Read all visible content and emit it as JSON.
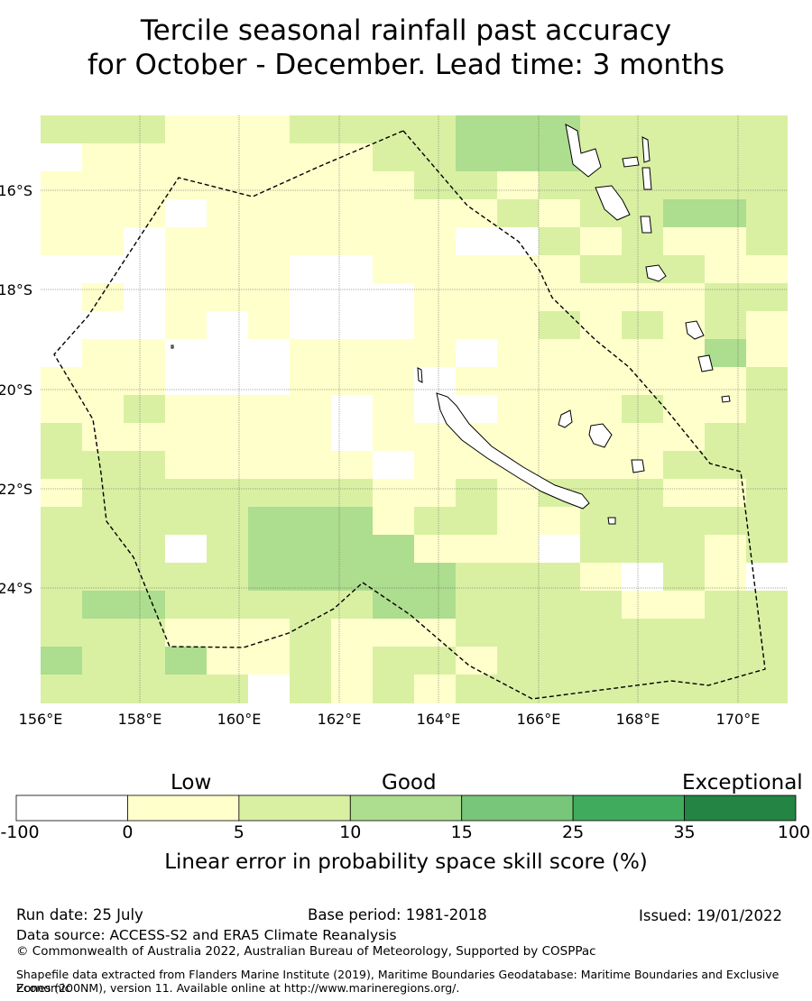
{
  "title_line1": "Tercile seasonal rainfall past accuracy",
  "title_line2": "for October - December. Lead time: 3 months",
  "map": {
    "lon_ticks": [
      "156°E",
      "158°E",
      "160°E",
      "162°E",
      "164°E",
      "166°E",
      "168°E",
      "170°E"
    ],
    "lat_ticks": [
      "16°S",
      "18°S",
      "20°S",
      "22°S",
      "24°S"
    ],
    "grid_lon_range": [
      156,
      171
    ],
    "grid_lat_range": [
      -14.3,
      -26.1
    ]
  },
  "colorbar": {
    "categories": [
      "Low",
      "Good",
      "Exceptional"
    ],
    "tick_labels": [
      "-100",
      "0",
      "5",
      "10",
      "15",
      "25",
      "35",
      "100"
    ],
    "colors": [
      "#ffffff",
      "#ffffcc",
      "#d9f0a3",
      "#addd8e",
      "#78c679",
      "#41ab5d",
      "#238443"
    ],
    "label": "Linear error in probability space skill score (%)"
  },
  "footer": {
    "run_date": "Run date: 25 July",
    "base_period": "Base period: 1981-2018",
    "issued": "Issued: 19/01/2022",
    "data_source": "Data source: ACCESS-S2 and ERA5 Climate Reanalysis",
    "copyright": "© Commonwealth of Australia 2022, Australian Bureau of Meteorology, Supported by COSPPac",
    "shapefile_line1": "Shapefile data extracted from Flanders Marine Institute (2019), Maritime Boundaries Geodatabase: Maritime Boundaries and Exclusive Economic",
    "shapefile_line2": "Zones (200NM), version 11. Available online at http://www.marineregions.org/."
  }
}
